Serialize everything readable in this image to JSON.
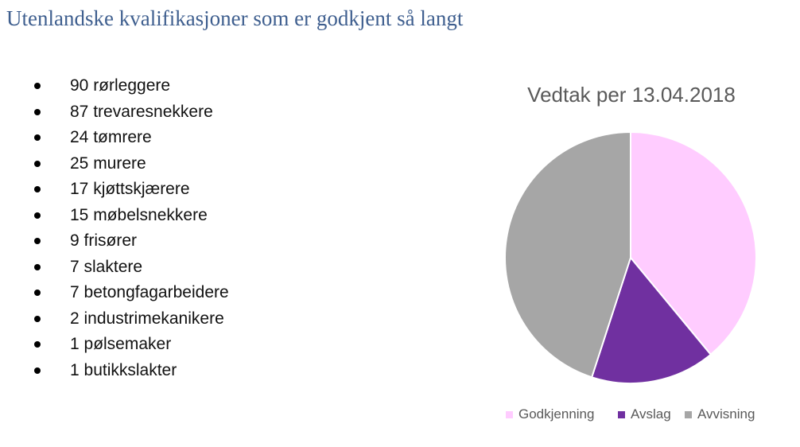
{
  "page": {
    "title": "Utenlandske kvalifikasjoner som er godkjent så langt"
  },
  "qualifications": [
    "90 rørleggere",
    "87 trevaresnekkere",
    "24 tømrere",
    "25 murere",
    "17 kjøttskjærere",
    "15 møbelsnekkere",
    "9 frisører",
    "7 slaktere",
    "7 betongfagarbeidere",
    "2 industrimekanikere",
    "1 pølsemaker",
    "1 butikkslakter"
  ],
  "chart_data": {
    "type": "pie",
    "title": "Vedtak per 13.04.2018",
    "categories": [
      "Godkjenning",
      "Avslag",
      "Avvisning"
    ],
    "values": [
      39,
      16,
      45
    ],
    "colors": [
      "#ffccff",
      "#7030a0",
      "#a6a6a6"
    ],
    "legend": "bottom",
    "start_angle": "12 o'clock, clockwise"
  }
}
